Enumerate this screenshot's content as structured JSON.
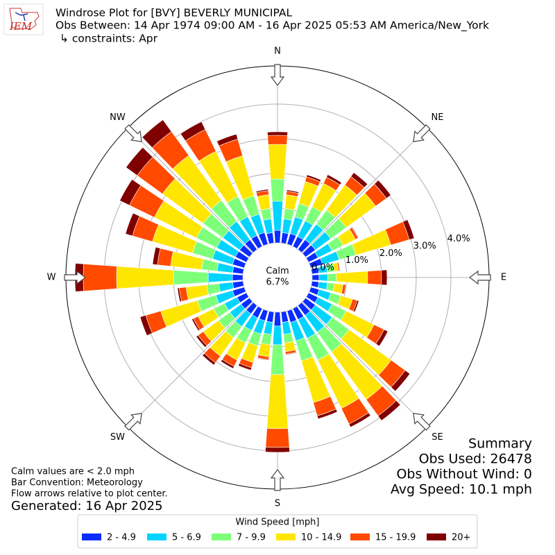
{
  "chart_data": {
    "type": "windrose",
    "title": "Windrose Plot for [BVY] BEVERLY MUNICIPAL",
    "subtitle": "Obs Between: 14 Apr 1974 09:00 AM - 16 Apr 2025 05:53 AM America/New_York",
    "constraints": "↳ constraints: Apr",
    "logo_text": "IEM",
    "calm_label": "Calm",
    "calm_text": "6.7%",
    "notes": [
      "Calm values are < 2.0 mph",
      "Bar Convention: Meteorology",
      "Flow arrows relative to plot center."
    ],
    "generated": "Generated: 16 Apr 2025",
    "summary": [
      "Summary",
      "Obs Used: 26478",
      "Obs Without Wind: 0",
      "Avg Speed: 10.1 mph"
    ],
    "legend_title": "Wind Speed [mph]",
    "x": [
      0,
      10,
      20,
      30,
      40,
      50,
      60,
      70,
      80,
      90,
      100,
      110,
      120,
      130,
      140,
      150,
      160,
      170,
      180,
      190,
      200,
      210,
      220,
      230,
      240,
      250,
      260,
      270,
      280,
      290,
      300,
      310,
      320,
      330,
      340,
      350
    ],
    "xticks": [
      {
        "value": 0,
        "label": "N"
      },
      {
        "value": 45,
        "label": "NE"
      },
      {
        "value": 90,
        "label": "E"
      },
      {
        "value": 135,
        "label": "SE"
      },
      {
        "value": 180,
        "label": "S"
      },
      {
        "value": 225,
        "label": "SW"
      },
      {
        "value": 270,
        "label": "W"
      },
      {
        "value": 315,
        "label": "NW"
      }
    ],
    "ylim": [
      0,
      5.1
    ],
    "yticks": [
      {
        "value": 0,
        "label": "0.0%"
      },
      {
        "value": 1,
        "label": "1.0%"
      },
      {
        "value": 2,
        "label": "2.0%"
      },
      {
        "value": 3,
        "label": "3.0%"
      },
      {
        "value": 4,
        "label": "4.0%"
      }
    ],
    "grid": true,
    "series": [
      {
        "name": "2 - 4.9",
        "color": "#0a2cff",
        "values": [
          0.36,
          0.3,
          0.32,
          0.32,
          0.35,
          0.35,
          0.3,
          0.35,
          0.2,
          0.2,
          0.2,
          0.25,
          0.3,
          0.35,
          0.35,
          0.35,
          0.35,
          0.3,
          0.4,
          0.3,
          0.3,
          0.3,
          0.3,
          0.3,
          0.3,
          0.35,
          0.3,
          0.3,
          0.3,
          0.35,
          0.35,
          0.35,
          0.35,
          0.35,
          0.35,
          0.3
        ]
      },
      {
        "name": "5 - 6.9",
        "color": "#00d4ff",
        "values": [
          0.84,
          0.4,
          0.5,
          0.5,
          0.55,
          0.55,
          0.45,
          0.5,
          0.25,
          0.25,
          0.25,
          0.35,
          0.45,
          0.6,
          0.6,
          0.6,
          0.55,
          0.35,
          0.54,
          0.35,
          0.4,
          0.4,
          0.45,
          0.4,
          0.4,
          0.5,
          0.4,
          0.7,
          0.45,
          0.6,
          0.6,
          0.6,
          0.65,
          0.6,
          0.55,
          0.4
        ]
      },
      {
        "name": "7 - 9.9",
        "color": "#7dff7a",
        "values": [
          0.64,
          0.3,
          0.4,
          0.45,
          0.5,
          0.55,
          0.35,
          0.5,
          0.2,
          0.25,
          0.2,
          0.3,
          0.45,
          0.6,
          0.7,
          0.7,
          0.6,
          0.25,
          0.86,
          0.3,
          0.35,
          0.4,
          0.4,
          0.4,
          0.35,
          0.55,
          0.35,
          1.0,
          0.45,
          0.6,
          0.65,
          0.7,
          0.75,
          0.65,
          0.55,
          0.3
        ]
      },
      {
        "name": "10 - 14.9",
        "color": "#ffe600",
        "values": [
          1.0,
          0.4,
          0.66,
          0.75,
          0.9,
          1.05,
          0.4,
          1.05,
          0.12,
          0.9,
          0.25,
          0.35,
          0.9,
          1.5,
          1.7,
          1.55,
          1.25,
          0.25,
          1.56,
          0.35,
          0.5,
          0.55,
          0.65,
          0.55,
          0.5,
          1.1,
          0.6,
          1.64,
          0.9,
          1.2,
          1.35,
          1.45,
          1.6,
          1.45,
          1.2,
          0.4
        ]
      },
      {
        "name": "15 - 19.9",
        "color": "#ff4a00",
        "values": [
          0.26,
          0.1,
          0.14,
          0.2,
          0.3,
          0.38,
          0.08,
          0.55,
          0.04,
          0.4,
          0.08,
          0.14,
          0.32,
          0.5,
          0.58,
          0.5,
          0.4,
          0.07,
          0.54,
          0.08,
          0.16,
          0.2,
          0.24,
          0.18,
          0.15,
          0.45,
          0.2,
          0.96,
          0.38,
          0.6,
          0.8,
          0.9,
          0.85,
          0.7,
          0.5,
          0.12
        ]
      },
      {
        "name": "20+",
        "color": "#800000",
        "values": [
          0.1,
          0.04,
          0.06,
          0.08,
          0.14,
          0.16,
          0.02,
          0.15,
          0.01,
          0.16,
          0.02,
          0.05,
          0.12,
          0.17,
          0.17,
          0.1,
          0.09,
          0.02,
          0.14,
          0.02,
          0.07,
          0.07,
          0.08,
          0.07,
          0.05,
          0.17,
          0.05,
          0.24,
          0.14,
          0.21,
          0.31,
          0.4,
          0.42,
          0.25,
          0.15,
          0.04
        ]
      }
    ]
  }
}
